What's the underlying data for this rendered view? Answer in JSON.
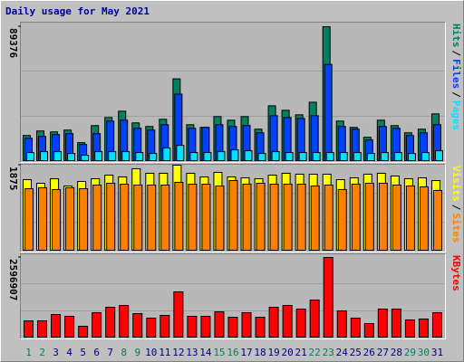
{
  "chart_data": [
    {
      "type": "bar",
      "title": "Daily usage for May 2021",
      "ylim": [
        0,
        89376
      ],
      "yticks": [
        89376
      ],
      "legend_separator": "/",
      "series": [
        {
          "name": "Hits",
          "color": "#008060",
          "values": [
            16795,
            19794,
            19194,
            20394,
            11997,
            23393,
            28792,
            32990,
            25193,
            22793,
            27592,
            54584,
            23993,
            22194,
            29392,
            26992,
            29392,
            20994,
            36590,
            33590,
            30591,
            38989,
            89376,
            26392,
            22194,
            15595,
            26992,
            23393,
            18594,
            20994,
            31191
          ]
        },
        {
          "name": "Files",
          "color": "#0040ff",
          "values": [
            15000,
            16200,
            17400,
            18000,
            10800,
            18000,
            26400,
            27000,
            21600,
            20400,
            24000,
            44400,
            21600,
            22200,
            24000,
            22800,
            23400,
            18600,
            30000,
            28800,
            28200,
            30000,
            64200,
            22800,
            21000,
            13800,
            22800,
            21600,
            16800,
            18600,
            24000
          ]
        },
        {
          "name": "Pages",
          "color": "#00e0ff",
          "values": [
            5400,
            6000,
            6000,
            4800,
            3600,
            6000,
            6000,
            6000,
            5400,
            4800,
            8400,
            10200,
            5400,
            5400,
            6000,
            7200,
            6600,
            4800,
            6000,
            5400,
            5400,
            5400,
            5400,
            5400,
            5400,
            4800,
            5400,
            5400,
            4800,
            5400,
            6600
          ]
        }
      ]
    },
    {
      "type": "bar",
      "ylim": [
        0,
        1875
      ],
      "yticks": [
        1875
      ],
      "legend_separator": "/",
      "series": [
        {
          "name": "Visits",
          "color": "#ffff00",
          "values": [
            1556,
            1476,
            1576,
            1416,
            1516,
            1576,
            1656,
            1616,
            1796,
            1696,
            1696,
            1875,
            1696,
            1616,
            1716,
            1616,
            1596,
            1576,
            1656,
            1696,
            1676,
            1676,
            1676,
            1556,
            1596,
            1676,
            1696,
            1636,
            1576,
            1596,
            1536
          ]
        },
        {
          "name": "Sites",
          "color": "#ff8000",
          "values": [
            1357,
            1377,
            1337,
            1377,
            1357,
            1436,
            1476,
            1456,
            1436,
            1436,
            1436,
            1496,
            1456,
            1456,
            1416,
            1536,
            1456,
            1476,
            1456,
            1456,
            1456,
            1416,
            1436,
            1337,
            1456,
            1476,
            1476,
            1436,
            1416,
            1397,
            1317
          ]
        }
      ]
    },
    {
      "type": "bar",
      "ylim": [
        0,
        2596907
      ],
      "yticks": [
        2596907
      ],
      "categories": [
        "1",
        "2",
        "3",
        "4",
        "5",
        "6",
        "7",
        "8",
        "9",
        "10",
        "11",
        "12",
        "13",
        "14",
        "15",
        "16",
        "17",
        "18",
        "19",
        "20",
        "21",
        "22",
        "23",
        "24",
        "25",
        "26",
        "27",
        "28",
        "29",
        "30",
        "31"
      ],
      "category_colors": [
        "#008060",
        "#008060",
        "#000080",
        "#000080",
        "#000080",
        "#000080",
        "#000080",
        "#008060",
        "#008060",
        "#000080",
        "#000080",
        "#000080",
        "#000080",
        "#000080",
        "#008060",
        "#008060",
        "#000080",
        "#000080",
        "#000080",
        "#000080",
        "#000080",
        "#008060",
        "#008060",
        "#000080",
        "#000080",
        "#000080",
        "#000080",
        "#000080",
        "#008060",
        "#008060",
        "#000080"
      ],
      "series": [
        {
          "name": "KBytes",
          "color": "#ff0000",
          "values": [
            531180,
            531180,
            737750,
            678730,
            354120,
            796770,
            973830,
            1032850,
            767260,
            619710,
            708240,
            1475500,
            678730,
            678730,
            826280,
            649220,
            796770,
            649220,
            973830,
            1032850,
            914810,
            1209910,
            2596907,
            855790,
            619710,
            442650,
            914810,
            914810,
            560690,
            590200,
            796770
          ]
        }
      ]
    }
  ]
}
